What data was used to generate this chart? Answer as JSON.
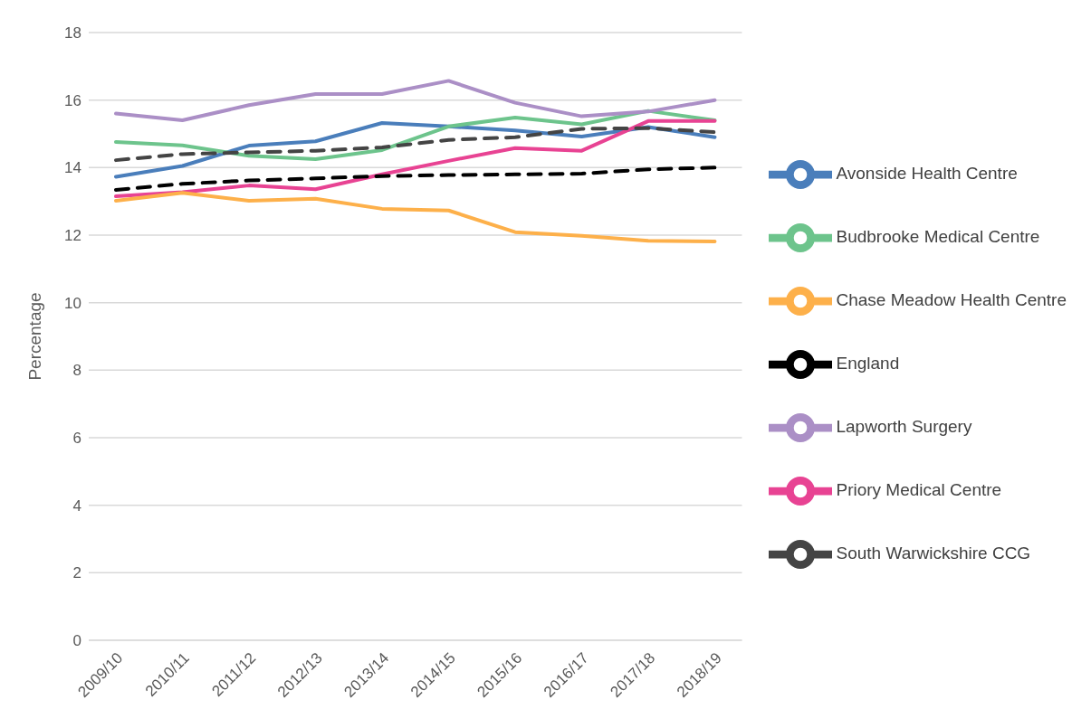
{
  "chart_data": {
    "type": "line",
    "ylabel": "Percentage",
    "categories": [
      "2009/10",
      "2010/11",
      "2011/12",
      "2012/13",
      "2013/14",
      "2014/15",
      "2015/16",
      "2016/17",
      "2017/18",
      "2018/19"
    ],
    "series": [
      {
        "name": "Avonside Health Centre",
        "color": "#4a7ebb",
        "values": [
          13.73,
          14.05,
          14.65,
          14.78,
          15.32,
          15.22,
          15.1,
          14.92,
          15.2,
          14.9
        ]
      },
      {
        "name": "Budbrooke Medical Centre",
        "color": "#6dc48c",
        "values": [
          14.76,
          14.66,
          14.35,
          14.25,
          14.52,
          15.22,
          15.48,
          15.28,
          15.68,
          15.4
        ]
      },
      {
        "name": "Lapworth Surgery",
        "color": "#ab8fc6",
        "values": [
          15.6,
          15.4,
          15.85,
          16.18,
          16.18,
          16.57,
          15.92,
          15.52,
          15.66,
          16.0
        ]
      },
      {
        "name": "Priory Medical Centre",
        "color": "#e84393",
        "values": [
          13.15,
          13.27,
          13.47,
          13.36,
          13.8,
          14.2,
          14.58,
          14.5,
          15.38,
          15.38
        ]
      },
      {
        "name": "Chase Meadow Health Centre",
        "color": "#fdb04a",
        "values": [
          13.02,
          13.25,
          13.02,
          13.08,
          12.78,
          12.73,
          12.09,
          11.98,
          11.83,
          11.81
        ]
      },
      {
        "name": "South Warwickshire CCG",
        "color": "#444444",
        "line_style": "dashed",
        "values": [
          14.22,
          14.4,
          14.45,
          14.5,
          14.6,
          14.82,
          14.9,
          15.15,
          15.17,
          15.05
        ]
      },
      {
        "name": "England",
        "color": "#000000",
        "line_style": "dashed",
        "values": [
          13.34,
          13.52,
          13.62,
          13.68,
          13.75,
          13.78,
          13.8,
          13.82,
          13.95,
          14.0
        ]
      }
    ],
    "ylim": [
      0,
      18
    ],
    "yticks": [
      0,
      2,
      4,
      6,
      8,
      10,
      12,
      14,
      16,
      18
    ],
    "grid": "y",
    "legend": "right",
    "marker": "none",
    "line_style": "solid"
  }
}
